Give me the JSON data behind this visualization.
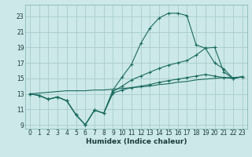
{
  "xlabel": "Humidex (Indice chaleur)",
  "bg_color": "#cce8e8",
  "grid_color": "#a8cccc",
  "line_color": "#1a6b60",
  "xlim": [
    -0.5,
    23.5
  ],
  "ylim": [
    8.5,
    24.5
  ],
  "xticks": [
    0,
    1,
    2,
    3,
    4,
    5,
    6,
    7,
    8,
    9,
    10,
    11,
    12,
    13,
    14,
    15,
    16,
    17,
    18,
    19,
    20,
    21,
    22,
    23
  ],
  "yticks": [
    9,
    11,
    13,
    15,
    17,
    19,
    21,
    23
  ],
  "line1_x": [
    0,
    1,
    2,
    3,
    4,
    5,
    6,
    7,
    8,
    9,
    10,
    11,
    12,
    13,
    14,
    15,
    16,
    17,
    18,
    19,
    20,
    21,
    22,
    23
  ],
  "line1_y": [
    13.0,
    12.8,
    12.3,
    12.6,
    12.1,
    10.3,
    9.0,
    10.9,
    10.5,
    13.5,
    15.2,
    16.8,
    19.5,
    21.5,
    22.8,
    23.4,
    23.4,
    23.1,
    19.3,
    18.9,
    19.0,
    15.8,
    15.0,
    15.2
  ],
  "line2_x": [
    0,
    1,
    2,
    3,
    4,
    5,
    6,
    7,
    8,
    9,
    10,
    11,
    12,
    13,
    14,
    15,
    16,
    17,
    18,
    19,
    20,
    21,
    22,
    23
  ],
  "line2_y": [
    13.0,
    12.8,
    12.3,
    12.6,
    12.1,
    10.3,
    9.0,
    10.9,
    10.5,
    13.3,
    14.0,
    14.8,
    15.3,
    15.8,
    16.3,
    16.7,
    17.0,
    17.3,
    18.0,
    18.9,
    17.0,
    16.2,
    15.0,
    15.2
  ],
  "line3_x": [
    0,
    1,
    2,
    3,
    4,
    5,
    6,
    7,
    8,
    9,
    10,
    11,
    12,
    13,
    14,
    15,
    16,
    17,
    18,
    19,
    20,
    21,
    22,
    23
  ],
  "line3_y": [
    13.0,
    12.8,
    12.3,
    12.6,
    12.1,
    10.3,
    9.0,
    10.9,
    10.5,
    13.1,
    13.5,
    13.8,
    14.0,
    14.2,
    14.5,
    14.7,
    14.9,
    15.1,
    15.3,
    15.5,
    15.3,
    15.1,
    15.0,
    15.2
  ],
  "line4_x": [
    0,
    1,
    2,
    3,
    4,
    5,
    6,
    7,
    8,
    9,
    10,
    11,
    12,
    13,
    14,
    15,
    16,
    17,
    18,
    19,
    20,
    21,
    22,
    23
  ],
  "line4_y": [
    13.0,
    13.1,
    13.2,
    13.3,
    13.4,
    13.4,
    13.4,
    13.5,
    13.5,
    13.6,
    13.7,
    13.8,
    13.9,
    14.0,
    14.2,
    14.3,
    14.5,
    14.6,
    14.8,
    14.9,
    15.0,
    15.1,
    15.1,
    15.2
  ]
}
